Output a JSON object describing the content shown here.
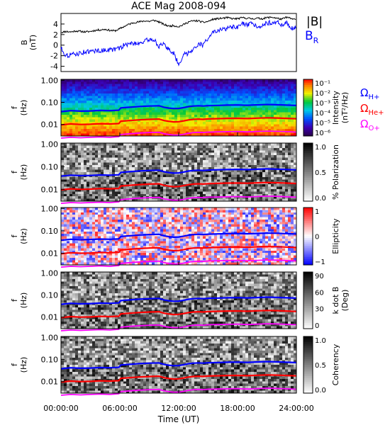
{
  "title": "ACE Mag 2008-094",
  "xlabel": "Time (UT)",
  "x_ticks": [
    "00:00:00",
    "06:00:00",
    "12:00:00",
    "18:00:00",
    "24:00:00"
  ],
  "colors": {
    "total_b": "#000000",
    "br": "#0000ff",
    "h_plus": "#0000ff",
    "he_plus": "#ff0000",
    "o_plus": "#ff00ff"
  },
  "chart_data": [
    {
      "type": "line",
      "panel": "magnetic field",
      "ylabel_main": "B",
      "ylabel_unit": "(nT)",
      "xlim_hours": [
        0,
        24
      ],
      "ylim": [
        -5,
        6
      ],
      "y_ticks": [
        "4",
        "2",
        "0",
        "-2",
        "-4"
      ],
      "y_tick_values": [
        4,
        2,
        0,
        -2,
        -4
      ],
      "x_hours": [
        0,
        0.5,
        1,
        1.5,
        2,
        2.5,
        3,
        3.5,
        4,
        4.5,
        5,
        5.5,
        6,
        6.5,
        7,
        7.5,
        8,
        8.5,
        9,
        9.5,
        10,
        10.5,
        11,
        11.5,
        12,
        12.5,
        13,
        13.5,
        14,
        14.5,
        15,
        15.5,
        16,
        16.5,
        17,
        17.5,
        18,
        18.5,
        19,
        19.5,
        20,
        20.5,
        21,
        21.5,
        22,
        22.5,
        23,
        23.5,
        24
      ],
      "series": [
        {
          "name": "|B|",
          "values": [
            2.4,
            2.6,
            2.5,
            2.7,
            2.6,
            2.5,
            2.6,
            2.8,
            2.9,
            3.0,
            2.8,
            2.7,
            3.1,
            3.6,
            4.0,
            4.3,
            4.4,
            4.6,
            4.5,
            4.7,
            4.4,
            3.9,
            3.6,
            3.7,
            3.5,
            3.9,
            4.4,
            4.6,
            4.6,
            4.3,
            4.5,
            4.9,
            5.0,
            5.1,
            5.2,
            5.0,
            5.0,
            5.2,
            5.1,
            5.0,
            5.1,
            5.0,
            5.2,
            5.3,
            5.1,
            4.9,
            5.3,
            5.0,
            4.8
          ]
        },
        {
          "name": "B",
          "sub": "R",
          "values": [
            -0.5,
            -2.0,
            -1.8,
            -1.7,
            -1.5,
            -1.2,
            -1.3,
            -1.0,
            -1.1,
            -0.9,
            -0.9,
            -0.8,
            -0.6,
            0.1,
            0.2,
            0.4,
            0.4,
            0.7,
            1.1,
            1.0,
            -0.2,
            0.1,
            -0.8,
            -1.6,
            -3.6,
            -1.8,
            -1.5,
            -0.6,
            0.2,
            0.0,
            1.4,
            2.4,
            2.6,
            3.0,
            3.2,
            3.4,
            3.3,
            4.1,
            3.7,
            4.1,
            3.6,
            3.7,
            4.2,
            4.3,
            4.4,
            3.8,
            4.3,
            3.2,
            3.3
          ]
        }
      ]
    },
    {
      "type": "heatmap",
      "panel": "power spectrum",
      "ylabel_main": "f",
      "ylabel_unit": "(Hz)",
      "y_ticks": [
        "1.00",
        "0.10",
        "0.01"
      ],
      "y_tick_values": [
        1.0,
        0.1,
        0.01
      ],
      "ylim": [
        0.003,
        1.1
      ],
      "y_scale": "log",
      "colorbar_label": "Intensity",
      "colorbar_unit": "(nT²/Hz)",
      "colorbar_ticks": [
        "10⁻¹",
        "10⁻²",
        "10⁻³",
        "10⁻⁴",
        "10⁻⁵",
        "10⁻⁶"
      ],
      "colorbar_scale": "rainbow",
      "legend": {
        "h_plus": "ΩH+",
        "he_plus": "ΩHe+",
        "o_plus": "ΩO+"
      }
    },
    {
      "type": "heatmap",
      "panel": "polarization",
      "ylabel_main": "f",
      "ylabel_unit": "(Hz)",
      "y_ticks": [
        "1.00",
        "0.10",
        "0.01"
      ],
      "y_tick_values": [
        1.0,
        0.1,
        0.01
      ],
      "colorbar_label": "% Polarization",
      "colorbar_unit": "",
      "colorbar_ticks": [
        "1.0",
        "0.5",
        "0.0"
      ],
      "colorbar_scale": "gray"
    },
    {
      "type": "heatmap",
      "panel": "ellipticity",
      "ylabel_main": "f",
      "ylabel_unit": "(Hz)",
      "y_ticks": [
        "1.00",
        "0.10",
        "0.01"
      ],
      "y_tick_values": [
        1.0,
        0.1,
        0.01
      ],
      "colorbar_label": "Ellipticity",
      "colorbar_unit": "",
      "colorbar_ticks": [
        "1",
        "0",
        "−1"
      ],
      "colorbar_scale": "bwr"
    },
    {
      "type": "heatmap",
      "panel": "wave normal angle",
      "ylabel_main": "f",
      "ylabel_unit": "(Hz)",
      "y_ticks": [
        "1.00",
        "0.10",
        "0.01"
      ],
      "y_tick_values": [
        1.0,
        0.1,
        0.01
      ],
      "colorbar_label": "k dot B",
      "colorbar_unit": "(Deg)",
      "colorbar_ticks": [
        "90",
        "60",
        "30",
        "0"
      ],
      "colorbar_scale": "gray"
    },
    {
      "type": "heatmap",
      "panel": "coherency",
      "ylabel_main": "f",
      "ylabel_unit": "(Hz)",
      "y_ticks": [
        "1.00",
        "0.10",
        "0.01"
      ],
      "y_tick_values": [
        1.0,
        0.1,
        0.01
      ],
      "colorbar_label": "Coherency",
      "colorbar_unit": "",
      "colorbar_ticks": [
        "1.0",
        "0.5",
        "0.0"
      ],
      "colorbar_scale": "gray"
    }
  ],
  "gyrofrequency_hz": {
    "x_hours": [
      0,
      1,
      2,
      3,
      4,
      5,
      5.9,
      6.1,
      7,
      8,
      9,
      10,
      10.5,
      11,
      11.5,
      12,
      12.5,
      13,
      13.5,
      14,
      14.5,
      15,
      16,
      17,
      18,
      19,
      20,
      21,
      22,
      23,
      24
    ],
    "h_plus": [
      0.038,
      0.042,
      0.04,
      0.041,
      0.043,
      0.042,
      0.044,
      0.056,
      0.06,
      0.065,
      0.068,
      0.07,
      0.06,
      0.055,
      0.052,
      0.053,
      0.058,
      0.064,
      0.068,
      0.07,
      0.068,
      0.071,
      0.073,
      0.075,
      0.076,
      0.074,
      0.077,
      0.08,
      0.078,
      0.075,
      0.072
    ],
    "he_plus": [
      0.0095,
      0.0105,
      0.01,
      0.0102,
      0.0108,
      0.0105,
      0.011,
      0.014,
      0.015,
      0.0162,
      0.017,
      0.0175,
      0.015,
      0.0138,
      0.013,
      0.0133,
      0.0145,
      0.016,
      0.017,
      0.0175,
      0.017,
      0.0178,
      0.0183,
      0.0188,
      0.019,
      0.0185,
      0.0193,
      0.02,
      0.0195,
      0.0188,
      0.018
    ],
    "o_plus": [
      0.0024,
      0.0026,
      0.0025,
      0.0026,
      0.0027,
      0.0026,
      0.0028,
      0.0035,
      0.0038,
      0.0041,
      0.0043,
      0.0044,
      0.0038,
      0.0035,
      0.0033,
      0.0033,
      0.0036,
      0.004,
      0.0043,
      0.0044,
      0.0043,
      0.0045,
      0.0046,
      0.0047,
      0.0048,
      0.0046,
      0.0048,
      0.005,
      0.0049,
      0.0047,
      0.0045
    ]
  }
}
